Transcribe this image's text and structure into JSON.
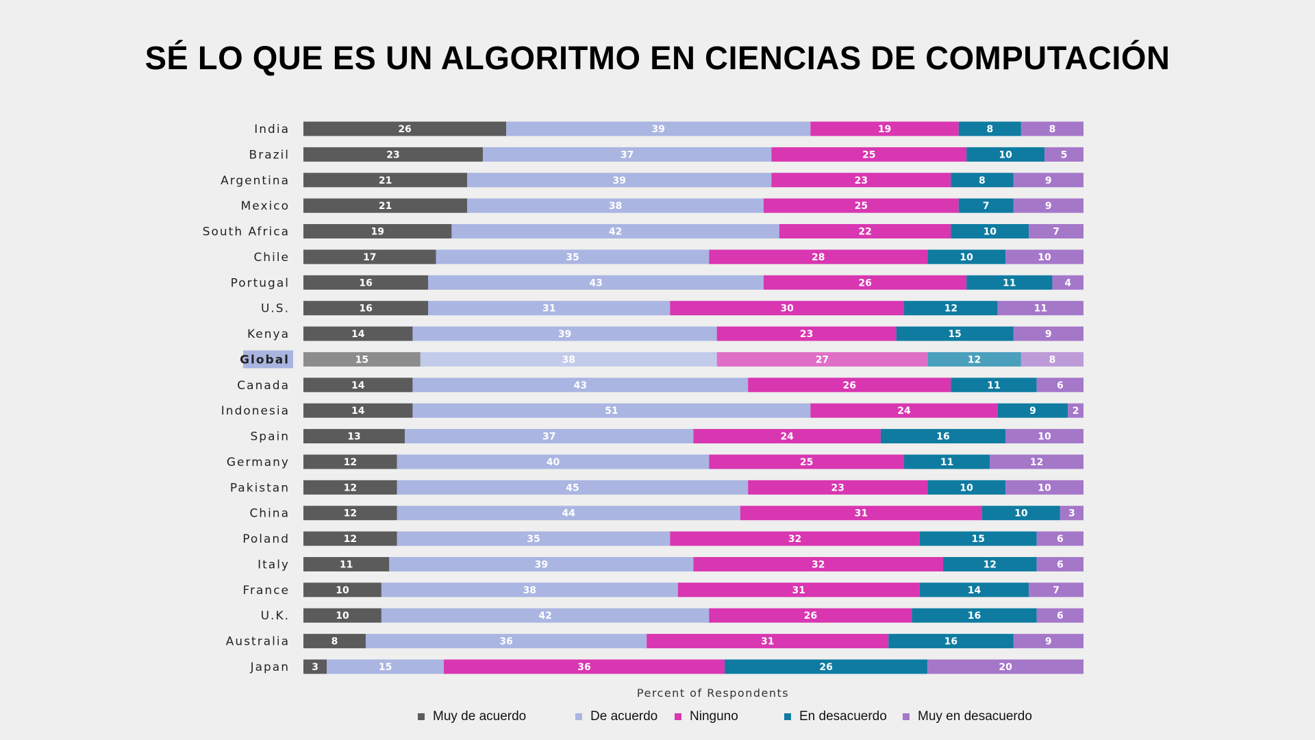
{
  "title": "SÉ LO QUE ES UN ALGORITMO EN CIENCIAS DE COMPUTACIÓN",
  "chart_data": {
    "type": "bar",
    "orientation": "horizontal",
    "stacked": true,
    "title": "SÉ LO QUE ES UN ALGORITMO EN CIENCIAS DE COMPUTACIÓN",
    "xlabel": "Percent of Respondents",
    "ylabel": "",
    "xlim": [
      0,
      100
    ],
    "grid": false,
    "legend_position": "bottom",
    "highlighted_category": "Global",
    "categories": [
      "India",
      "Brazil",
      "Argentina",
      "Mexico",
      "South Africa",
      "Chile",
      "Portugal",
      "U.S.",
      "Kenya",
      "Global",
      "Canada",
      "Indonesia",
      "Spain",
      "Germany",
      "Pakistan",
      "China",
      "Poland",
      "Italy",
      "France",
      "U.K.",
      "Australia",
      "Japan"
    ],
    "series": [
      {
        "name": "Muy de acuerdo",
        "color": "#5b5b5b",
        "highlight_color": "#8c8c8c",
        "values": [
          26,
          23,
          21,
          21,
          19,
          17,
          16,
          16,
          14,
          15,
          14,
          14,
          13,
          12,
          12,
          12,
          12,
          11,
          10,
          10,
          8,
          3
        ]
      },
      {
        "name": "De acuerdo",
        "color": "#aab5e2",
        "highlight_color": "#c3cbea",
        "values": [
          39,
          37,
          39,
          38,
          42,
          35,
          43,
          31,
          39,
          38,
          43,
          51,
          37,
          40,
          45,
          44,
          35,
          39,
          38,
          42,
          36,
          15
        ]
      },
      {
        "name": "Ninguno",
        "color": "#d936b1",
        "highlight_color": "#df6fc6",
        "values": [
          19,
          25,
          23,
          25,
          22,
          28,
          26,
          30,
          23,
          27,
          26,
          24,
          24,
          25,
          23,
          31,
          32,
          32,
          31,
          26,
          31,
          36
        ]
      },
      {
        "name": "En desacuerdo",
        "color": "#0f7ba1",
        "highlight_color": "#4a9fbd",
        "values": [
          8,
          10,
          8,
          7,
          10,
          10,
          11,
          12,
          15,
          12,
          11,
          9,
          16,
          11,
          10,
          10,
          15,
          12,
          14,
          16,
          16,
          26
        ]
      },
      {
        "name": "Muy en desacuerdo",
        "color": "#a577c9",
        "highlight_color": "#bd9bd8",
        "values": [
          8,
          5,
          9,
          9,
          7,
          10,
          4,
          11,
          9,
          8,
          6,
          2,
          10,
          12,
          10,
          3,
          6,
          6,
          7,
          6,
          9,
          20
        ]
      }
    ]
  },
  "legend": [
    {
      "label": "Muy de acuerdo",
      "color": "#5b5b5b"
    },
    {
      "label": "De acuerdo",
      "color": "#aab5e2"
    },
    {
      "label": "Ninguno",
      "color": "#d936b1"
    },
    {
      "label": "En desacuerdo",
      "color": "#0f7ba1"
    },
    {
      "label": "Muy en desacuerdo",
      "color": "#a577c9"
    }
  ],
  "highlight_label_bg": "#a9b4e0"
}
